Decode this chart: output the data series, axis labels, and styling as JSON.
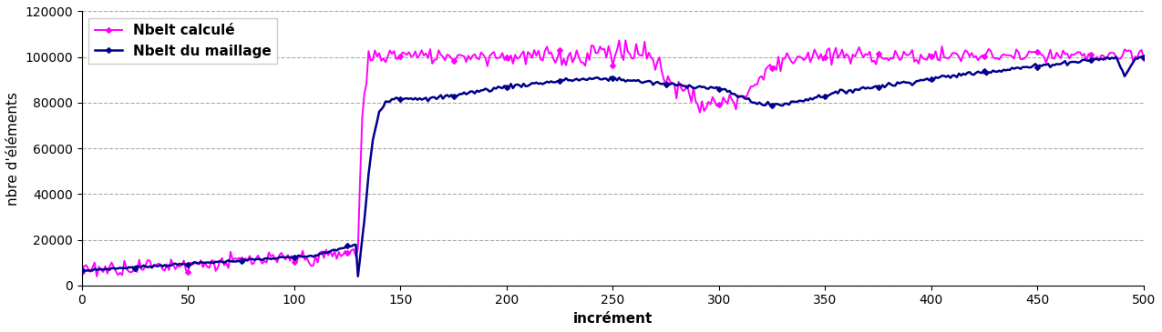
{
  "title": "",
  "xlabel": "incrément",
  "ylabel": "nbre d'éléments",
  "xlim": [
    0,
    500
  ],
  "ylim": [
    0,
    120000
  ],
  "yticks": [
    0,
    20000,
    40000,
    60000,
    80000,
    100000,
    120000
  ],
  "xticks": [
    0,
    50,
    100,
    150,
    200,
    250,
    300,
    350,
    400,
    450,
    500
  ],
  "color_maillage": "#00008B",
  "color_calcule": "#FF00FF",
  "legend_labels": [
    "Nbelt du maillage",
    "Nbelt calculé"
  ],
  "marker": "D",
  "markersize": 3,
  "linewidth_maillage": 1.8,
  "linewidth_calcule": 1.4,
  "grid_color": "#aaaaaa",
  "grid_linestyle": "--",
  "background_color": "#ffffff",
  "legend_fontsize": 11,
  "axis_fontsize": 11,
  "tick_fontsize": 10
}
